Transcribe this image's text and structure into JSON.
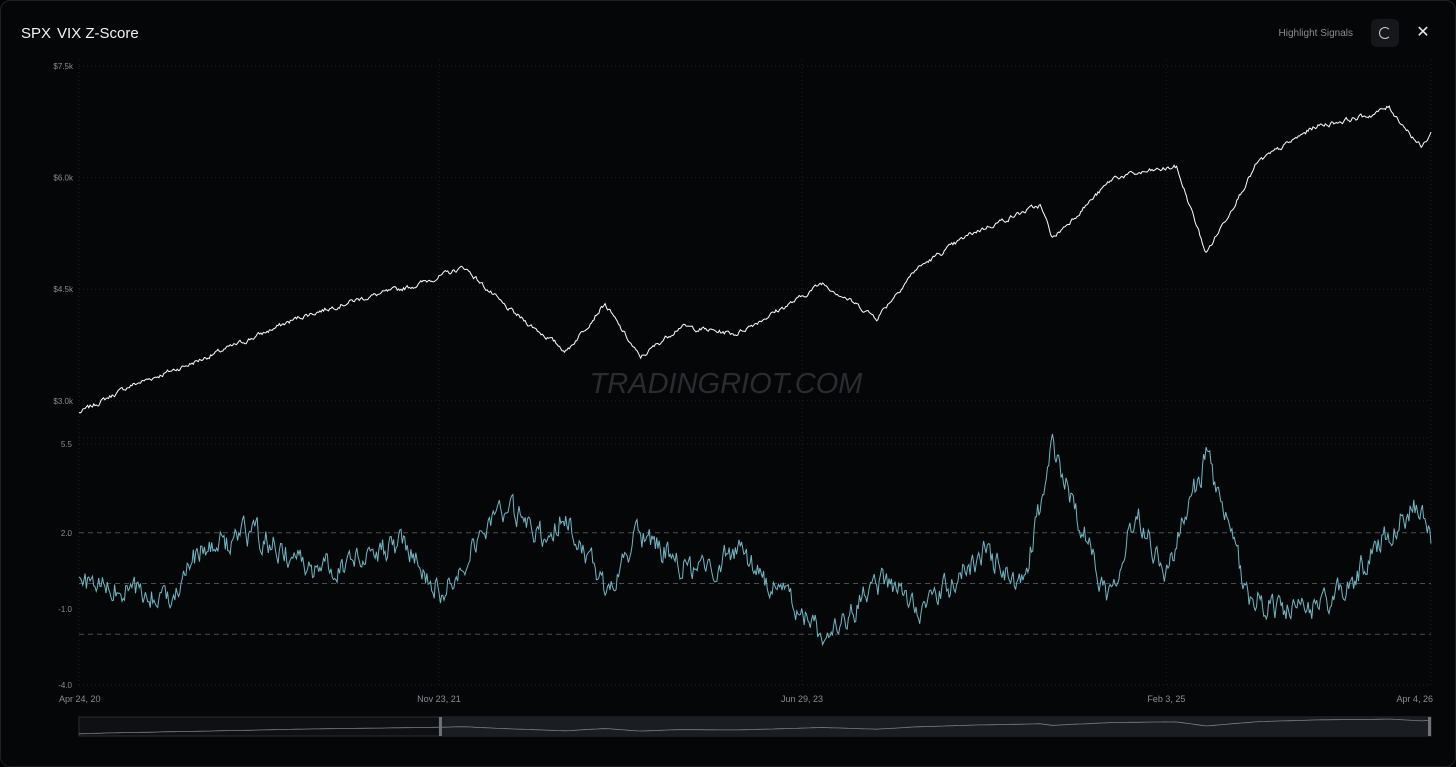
{
  "title": {
    "ticker": "SPX",
    "indicator": "VIX Z-Score"
  },
  "controls": {
    "highlight_label": "Highlight Signals",
    "refresh_icon": "refresh-icon",
    "close_icon": "close-icon"
  },
  "watermark": "TRADINGRIOT.COM",
  "chart_data": [
    {
      "type": "line",
      "name": "SPX",
      "ylim": [
        2500,
        7500
      ],
      "yticks": [
        3000,
        4500,
        6000,
        7500
      ],
      "ytick_labels": [
        "$3.0k",
        "$4.5k",
        "$6.0k",
        "$7.5k"
      ],
      "color": "#ffffff",
      "x": [
        "2020-04-24",
        "2020-07-15",
        "2020-10-15",
        "2021-01-15",
        "2021-04-15",
        "2021-07-15",
        "2021-10-15",
        "2022-01-03",
        "2022-03-10",
        "2022-06-16",
        "2022-08-16",
        "2022-10-12",
        "2022-12-15",
        "2023-03-15",
        "2023-06-29",
        "2023-07-31",
        "2023-10-27",
        "2023-12-29",
        "2024-03-28",
        "2024-07-15",
        "2024-08-05",
        "2024-11-11",
        "2025-02-19",
        "2025-04-08",
        "2025-06-30",
        "2025-09-30",
        "2025-12-31",
        "2026-01-26",
        "2026-03-20",
        "2026-04-04"
      ],
      "y": [
        2836,
        3200,
        3480,
        3800,
        4130,
        4360,
        4550,
        4796,
        4260,
        3666,
        4305,
        3577,
        4000,
        3900,
        4396,
        4588,
        4117,
        4770,
        5254,
        5630,
        5186,
        6001,
        6144,
        4982,
        6205,
        6688,
        6845,
        6950,
        6400,
        6600
      ]
    },
    {
      "type": "line",
      "name": "VIX Z-Score",
      "ylim": [
        -4.0,
        5.5
      ],
      "yticks": [
        -4.0,
        -1.0,
        2.0,
        5.5
      ],
      "ytick_labels": [
        "-4.0",
        "-1.0",
        "2.0",
        "5.5"
      ],
      "reference_lines": [
        2.0,
        0,
        -2.0
      ],
      "color": "#6fb7c4",
      "x": [
        "2020-04-24",
        "2020-09-08",
        "2020-11-02",
        "2021-01-27",
        "2021-05-12",
        "2021-09-30",
        "2021-12-01",
        "2022-01-24",
        "2022-03-07",
        "2022-05-09",
        "2022-06-13",
        "2022-08-16",
        "2022-10-12",
        "2023-01-15",
        "2023-03-13",
        "2023-06-29",
        "2023-08-15",
        "2023-10-27",
        "2024-01-15",
        "2024-04-19",
        "2024-06-15",
        "2024-08-05",
        "2024-10-31",
        "2024-12-18",
        "2025-02-03",
        "2025-04-08",
        "2025-06-15",
        "2025-09-01",
        "2025-11-20",
        "2026-01-15",
        "2026-03-09",
        "2026-04-04"
      ],
      "y": [
        0.0,
        -0.6,
        1.2,
        2.0,
        0.5,
        1.6,
        -0.4,
        2.0,
        2.9,
        1.9,
        2.7,
        -0.2,
        1.9,
        0.3,
        1.4,
        -1.2,
        -2.3,
        0.1,
        -1.0,
        1.3,
        -0.3,
        5.3,
        -0.4,
        2.9,
        0.4,
        5.0,
        -0.5,
        -1.2,
        -0.3,
        1.8,
        3.1,
        1.8
      ]
    }
  ],
  "x_axis": {
    "ticks": [
      "2020-04-24",
      "2021-11-23",
      "2023-06-29",
      "2025-02-03",
      "2026-04-04"
    ],
    "tick_labels": [
      "Apr 24, 20",
      "Nov 23, 21",
      "Jun 29, 23",
      "Feb 3, 25",
      "Apr 4, 26"
    ],
    "range": [
      "2020-04-24",
      "2026-04-04"
    ]
  },
  "navigator": {
    "selection_start": "2021-11-23",
    "selection_end": "2026-04-04"
  }
}
